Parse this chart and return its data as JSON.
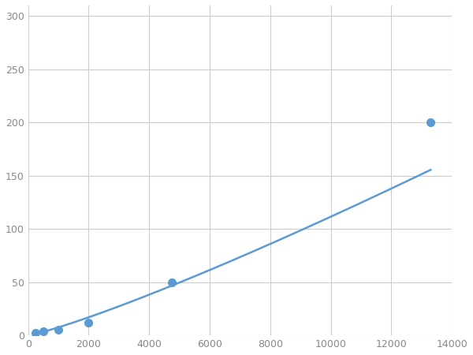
{
  "x_points": [
    250,
    500,
    1000,
    2000,
    4750,
    13300
  ],
  "y_points": [
    2,
    4,
    5,
    12,
    50,
    200
  ],
  "line_color": "#5b9bd5",
  "marker_color": "#5b9bd5",
  "marker_size": 7,
  "line_width": 1.8,
  "xlim": [
    0,
    14000
  ],
  "ylim": [
    0,
    310
  ],
  "xticks": [
    0,
    2000,
    4000,
    6000,
    8000,
    10000,
    12000,
    14000
  ],
  "yticks": [
    0,
    50,
    100,
    150,
    200,
    250,
    300
  ],
  "grid_color": "#cccccc",
  "grid_linewidth": 0.8,
  "background_color": "#ffffff",
  "figsize": [
    6.0,
    4.5
  ],
  "dpi": 100
}
